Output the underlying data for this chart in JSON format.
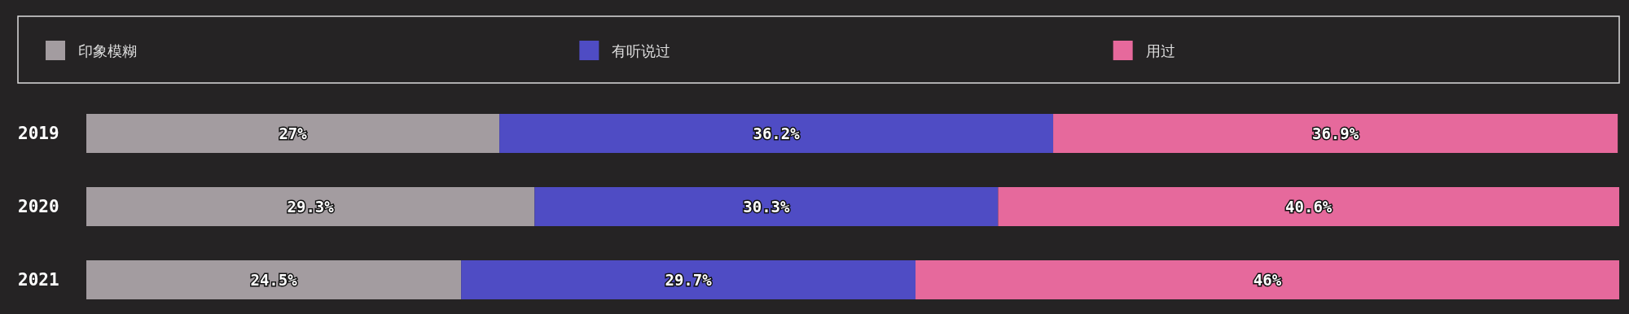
{
  "chart_data": {
    "type": "bar",
    "orientation": "horizontal",
    "stacked": true,
    "legend": "top",
    "categories": [
      "2019",
      "2020",
      "2021"
    ],
    "series": [
      {
        "name": "印象模糊",
        "color": "#a39ca0",
        "values": [
          27,
          29.3,
          24.5
        ],
        "value_labels": [
          "27%",
          "29.3%",
          "24.5%"
        ]
      },
      {
        "name": "有听说过",
        "color": "#4f4cc4",
        "values": [
          36.2,
          30.3,
          29.7
        ],
        "value_labels": [
          "36.2%",
          "30.3%",
          "29.7%"
        ]
      },
      {
        "name": "用过",
        "color": "#e6699c",
        "values": [
          36.9,
          40.6,
          46
        ],
        "value_labels": [
          "36.9%",
          "40.6%",
          "46%"
        ]
      }
    ]
  }
}
